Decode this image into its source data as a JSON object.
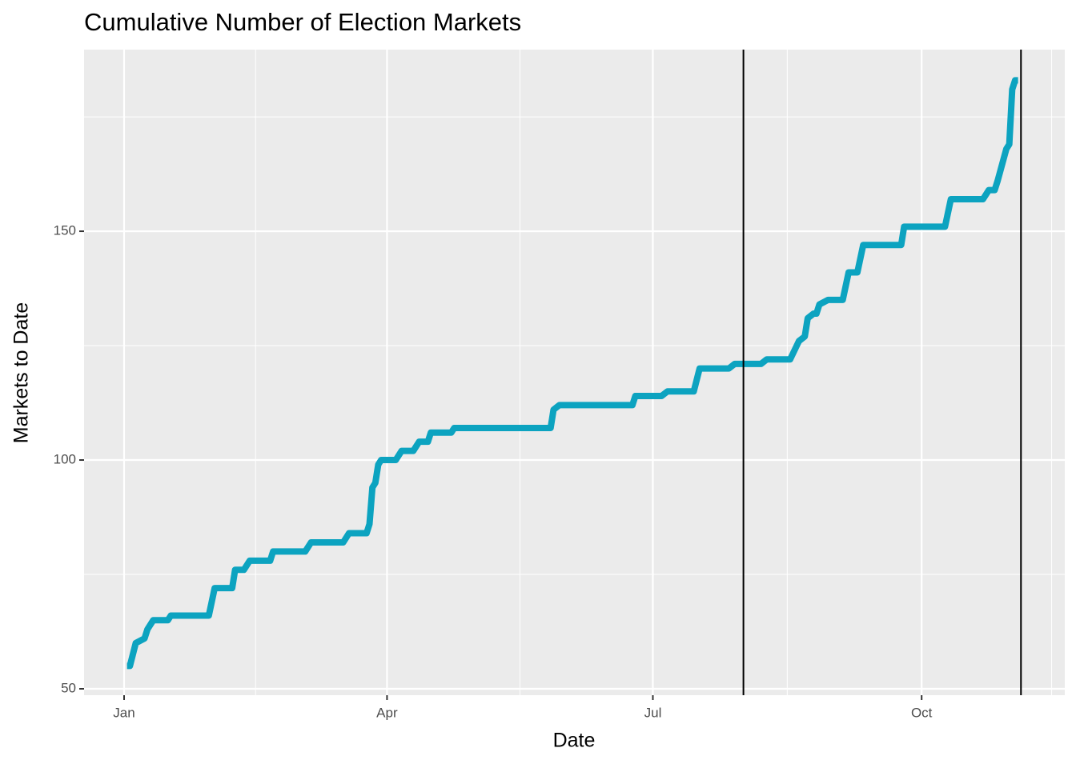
{
  "chart_data": {
    "type": "line",
    "title": "Cumulative Number of Election Markets",
    "x_label": "Date",
    "y_label": "Markets to Date",
    "x": [
      1,
      2,
      4,
      7,
      8,
      10,
      15,
      16,
      29,
      31,
      37,
      38,
      41,
      43,
      50,
      51,
      62,
      64,
      75,
      77,
      83,
      84,
      85,
      86,
      87,
      88,
      93,
      95,
      99,
      101,
      104,
      105,
      112,
      113,
      146,
      147,
      149,
      174,
      175,
      184,
      186,
      195,
      197,
      207,
      209,
      218,
      220,
      228,
      231,
      233,
      234,
      236,
      237,
      238,
      241,
      246,
      248,
      251,
      253,
      266,
      267,
      281,
      283,
      294,
      296,
      298,
      299,
      302,
      303,
      304,
      305,
      306
    ],
    "series": [
      {
        "name": "Markets to Date",
        "color": "#0ca3c0",
        "values": [
          55,
          55,
          60,
          61,
          63,
          65,
          65,
          66,
          66,
          72,
          72,
          76,
          76,
          78,
          78,
          80,
          80,
          82,
          82,
          84,
          84,
          86,
          94,
          95,
          99,
          100,
          100,
          102,
          102,
          104,
          104,
          106,
          106,
          107,
          107,
          111,
          112,
          112,
          114,
          114,
          115,
          115,
          120,
          120,
          121,
          121,
          122,
          122,
          126,
          127,
          131,
          132,
          132,
          134,
          135,
          135,
          141,
          141,
          147,
          147,
          151,
          151,
          157,
          157,
          159,
          159,
          161,
          168,
          169,
          181,
          183,
          183
        ]
      }
    ],
    "xlim": [
      -13.7,
      322
    ],
    "ylim": [
      48.6,
      189.7
    ],
    "xticks": [
      {
        "value": 0,
        "label": "Jan"
      },
      {
        "value": 90,
        "label": "Apr"
      },
      {
        "value": 181,
        "label": "Jul"
      },
      {
        "value": 273,
        "label": "Oct"
      }
    ],
    "xminor": [
      45,
      135.5,
      227,
      317.5
    ],
    "yticks": [
      50,
      100,
      150
    ],
    "yminor": [
      75,
      125,
      175
    ],
    "vlines": [
      212,
      307
    ],
    "grid": true
  }
}
